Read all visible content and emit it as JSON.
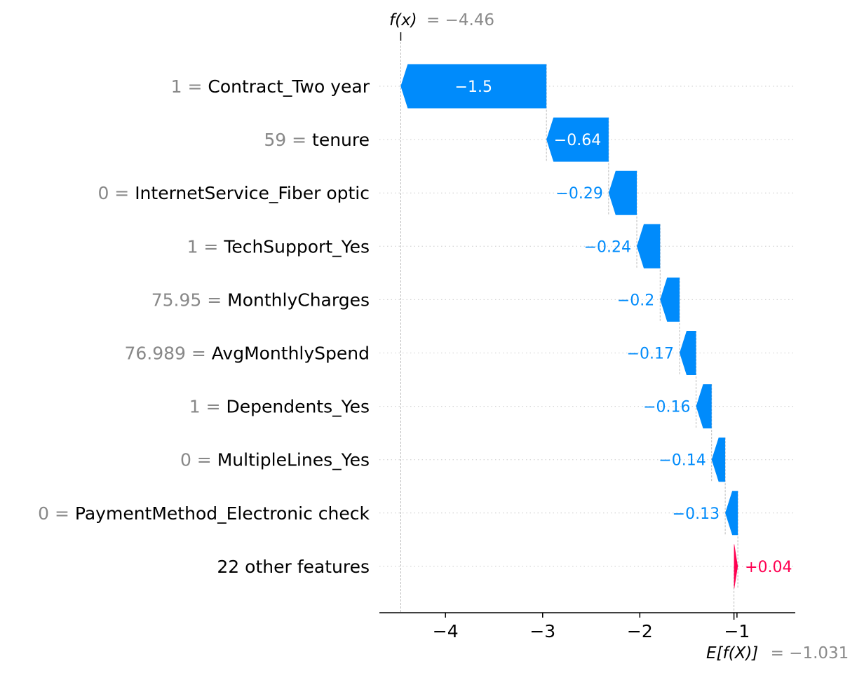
{
  "chart_data": {
    "type": "waterfall",
    "fx": {
      "label": "f(x)",
      "value": -4.46,
      "value_text": "= −4.46"
    },
    "base": {
      "label": "E[f(X)]",
      "value": -1.031,
      "value_text": "= −1.031"
    },
    "xlim": [
      -4.68,
      -0.4
    ],
    "xticks": [
      -4,
      -3,
      -2,
      -1
    ],
    "xtick_labels": [
      "−4",
      "−3",
      "−2",
      "−1"
    ],
    "features": [
      {
        "value": "1",
        "name": "Contract_Two year",
        "shap": -1.5,
        "shap_label": "−1.5"
      },
      {
        "value": "59",
        "name": "tenure",
        "shap": -0.64,
        "shap_label": "−0.64"
      },
      {
        "value": "0",
        "name": "InternetService_Fiber optic",
        "shap": -0.29,
        "shap_label": "−0.29"
      },
      {
        "value": "1",
        "name": "TechSupport_Yes",
        "shap": -0.24,
        "shap_label": "−0.24"
      },
      {
        "value": "75.95",
        "name": "MonthlyCharges",
        "shap": -0.2,
        "shap_label": "−0.2"
      },
      {
        "value": "76.989",
        "name": "AvgMonthlySpend",
        "shap": -0.17,
        "shap_label": "−0.17"
      },
      {
        "value": "1",
        "name": "Dependents_Yes",
        "shap": -0.16,
        "shap_label": "−0.16"
      },
      {
        "value": "0",
        "name": "MultipleLines_Yes",
        "shap": -0.14,
        "shap_label": "−0.14"
      },
      {
        "value": "0",
        "name": "PaymentMethod_Electronic check",
        "shap": -0.13,
        "shap_label": "−0.13"
      },
      {
        "value": "",
        "name": "22 other features",
        "shap": 0.04,
        "shap_label": "+0.04"
      }
    ],
    "colors": {
      "negative": "#008bfb",
      "positive": "#ff0051",
      "label_gray": "#888888",
      "grid": "#cccccc"
    }
  }
}
